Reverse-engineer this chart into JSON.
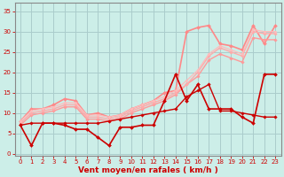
{
  "xlabel": "Vent moyen/en rafales ( km/h )",
  "bg_color": "#cceee8",
  "grid_color": "#aacccc",
  "x_values": [
    0,
    1,
    2,
    3,
    4,
    5,
    6,
    7,
    8,
    9,
    10,
    11,
    12,
    13,
    14,
    15,
    16,
    17,
    18,
    19,
    20,
    21,
    22,
    23
  ],
  "ylim": [
    -0.5,
    37
  ],
  "xlim": [
    -0.5,
    23.5
  ],
  "series": [
    {
      "y": [
        7,
        2,
        7.5,
        7.5,
        7,
        6,
        6,
        4,
        2,
        6.5,
        6.5,
        7,
        7,
        13,
        19.5,
        13,
        17,
        11,
        11,
        11,
        9,
        7.5,
        19.5,
        19.5
      ],
      "color": "#cc0000",
      "lw": 1.2,
      "marker": "D",
      "ms": 2.0,
      "zorder": 5
    },
    {
      "y": [
        7,
        7.5,
        7.5,
        7.5,
        7.5,
        7.5,
        7.5,
        7.5,
        8,
        8.5,
        9,
        9.5,
        10,
        10.5,
        11,
        14,
        15.5,
        17,
        10.5,
        10.5,
        10,
        9.5,
        9,
        9
      ],
      "color": "#cc0000",
      "lw": 1.0,
      "marker": "D",
      "ms": 1.8,
      "zorder": 4
    },
    {
      "y": [
        8,
        11,
        11,
        12,
        13.5,
        13,
        9.5,
        10,
        9,
        9.5,
        11,
        12,
        13,
        15,
        15.5,
        30,
        31,
        31.5,
        27,
        26.5,
        25.5,
        31.5,
        27,
        31.5
      ],
      "color": "#ff8888",
      "lw": 1.2,
      "marker": "D",
      "ms": 2.0,
      "zorder": 3
    },
    {
      "y": [
        7,
        9.5,
        10,
        10.5,
        11.5,
        11.5,
        8.5,
        8.5,
        8,
        8.5,
        10,
        11,
        12,
        13,
        14.5,
        17,
        19,
        23,
        24.5,
        23.5,
        22.5,
        28.5,
        28,
        28
      ],
      "color": "#ff9999",
      "lw": 1.0,
      "marker": "D",
      "ms": 1.8,
      "zorder": 3
    },
    {
      "y": [
        7.5,
        10,
        10.5,
        11,
        12,
        12,
        9,
        9,
        8.5,
        9,
        10.5,
        11.5,
        12.5,
        13.5,
        15,
        17,
        20,
        24,
        26,
        25,
        24,
        30,
        29.5,
        29.5
      ],
      "color": "#ffaaaa",
      "lw": 1.0,
      "marker": "D",
      "ms": 1.8,
      "zorder": 3
    },
    {
      "y": [
        8,
        10.5,
        11,
        11.5,
        12.5,
        12.5,
        9.5,
        9.5,
        9,
        9.5,
        11,
        12,
        13,
        14,
        15.5,
        18,
        20.5,
        24.5,
        26.5,
        25.5,
        24.5,
        30.5,
        30,
        30
      ],
      "color": "#ffbbbb",
      "lw": 0.9,
      "marker": "D",
      "ms": 1.6,
      "zorder": 3
    }
  ],
  "yticks": [
    0,
    5,
    10,
    15,
    20,
    25,
    30,
    35
  ],
  "xticks": [
    0,
    1,
    2,
    3,
    4,
    5,
    6,
    7,
    8,
    9,
    10,
    11,
    12,
    13,
    14,
    15,
    16,
    17,
    18,
    19,
    20,
    21,
    22,
    23
  ],
  "tick_color": "#cc0000",
  "axis_color": "#888888",
  "xlabel_color": "#cc0000",
  "label_fontsize": 6.5,
  "tick_fontsize": 5.0
}
